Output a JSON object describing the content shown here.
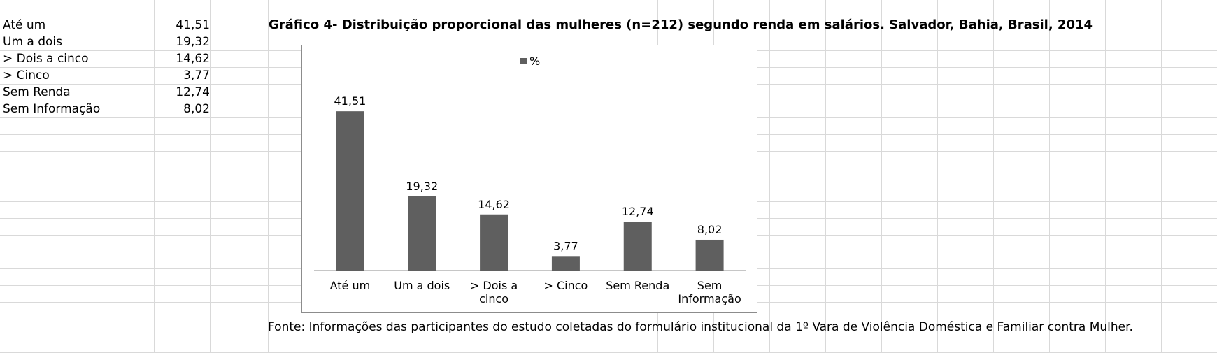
{
  "sheet": {
    "rows": [
      {
        "label": "Até um",
        "value": "41,51"
      },
      {
        "label": "Um a dois",
        "value": "19,32"
      },
      {
        "label": "> Dois a cinco",
        "value": "14,62"
      },
      {
        "label": "> Cinco",
        "value": "3,77"
      },
      {
        "label": "Sem Renda",
        "value": "12,74"
      },
      {
        "label": "Sem Informação",
        "value": "8,02"
      }
    ]
  },
  "chart_title": "Gráfico 4- Distribuição proporcional das mulheres (n=212) segundo renda em salários. Salvador, Bahia, Brasil, 2014",
  "footer_note": "Fonte: Informações das participantes do estudo coletadas do formulário institucional da 1º Vara de Violência Doméstica e Familiar contra Mulher.",
  "colors": {
    "bar": "#5f5f5f",
    "gridline": "#d9d9d9",
    "chart_border": "#8c8c8c"
  },
  "chart_data": {
    "type": "bar",
    "categories": [
      "Até um",
      "Um a dois",
      "> Dois a cinco",
      "> Cinco",
      "Sem Renda",
      "Sem Informação"
    ],
    "category_lines": [
      [
        "Até um"
      ],
      [
        "Um a dois"
      ],
      [
        "> Dois a",
        "cinco"
      ],
      [
        "> Cinco"
      ],
      [
        "Sem Renda"
      ],
      [
        "Sem",
        "Informação"
      ]
    ],
    "series": [
      {
        "name": "%",
        "values": [
          41.51,
          19.32,
          14.62,
          3.77,
          12.74,
          8.02
        ]
      }
    ],
    "data_labels": [
      "41,51",
      "19,32",
      "14,62",
      "3,77",
      "12,74",
      "8,02"
    ],
    "ylim": [
      0,
      45
    ],
    "grid": false,
    "legend_position": "top-center"
  }
}
